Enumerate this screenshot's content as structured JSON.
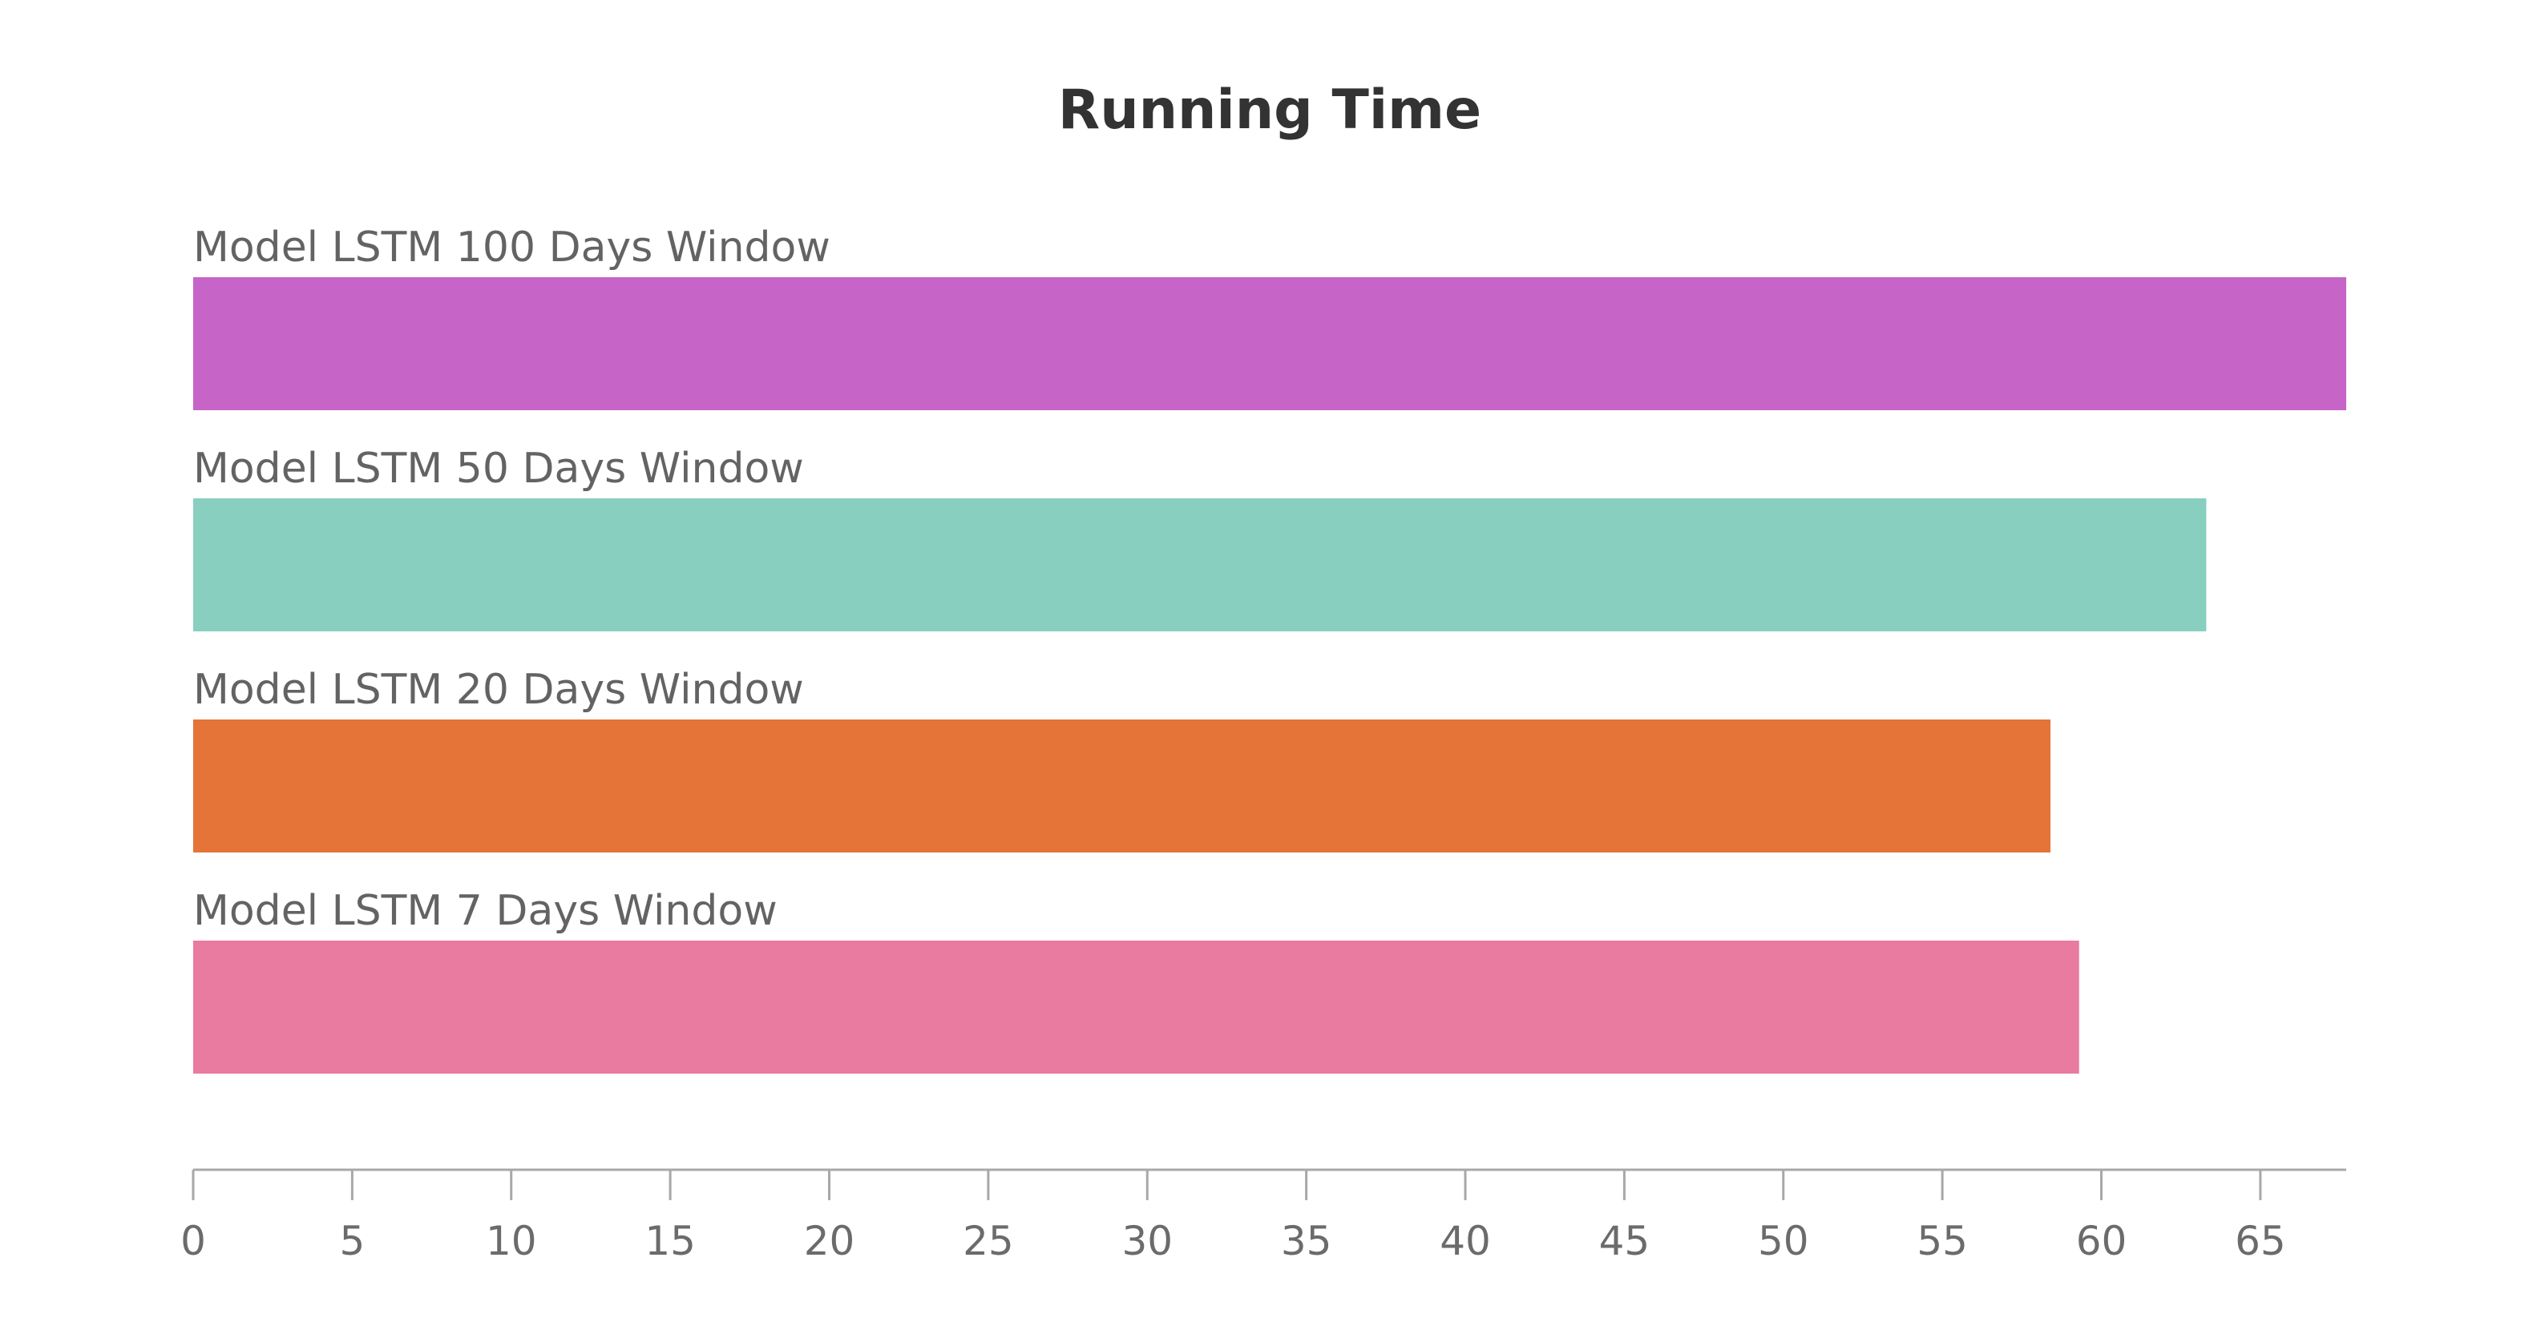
{
  "chart_data": {
    "type": "bar",
    "orientation": "horizontal",
    "title": "Running Time",
    "xlabel": "",
    "ylabel": "",
    "categories": [
      "Model LSTM 100 Days Window",
      "Model LSTM 50 Days Window",
      "Model LSTM 20 Days Window",
      "Model LSTM 7 Days Window"
    ],
    "values": [
      67.7,
      63.3,
      58.4,
      59.3
    ],
    "colors": [
      "#c664c7",
      "#88cfbf",
      "#e47438",
      "#e97aa0"
    ],
    "xlim": [
      0,
      67.7
    ],
    "xticks": [
      0,
      5,
      10,
      15,
      20,
      25,
      30,
      35,
      40,
      45,
      50,
      55,
      60,
      65
    ],
    "grid": false,
    "legend": "none"
  }
}
